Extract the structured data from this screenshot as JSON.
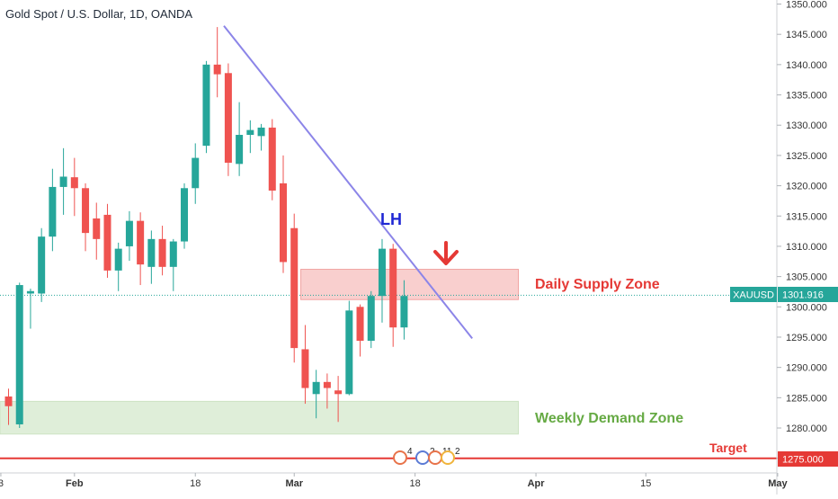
{
  "chart_data": {
    "type": "candlestick",
    "title": "Gold Spot / U.S. Dollar, 1D, OANDA",
    "symbol": "XAUUSD",
    "last_price": "1301.916",
    "ylim": [
      1272,
      1351
    ],
    "y_ticks": [
      "1275.000",
      "1280.000",
      "1285.000",
      "1290.000",
      "1295.000",
      "1300.000",
      "1305.000",
      "1310.000",
      "1315.000",
      "1320.000",
      "1325.000",
      "1330.000",
      "1335.000",
      "1340.000",
      "1345.000",
      "1350.000"
    ],
    "x_labels": [
      {
        "label": "3",
        "bar": -0.7
      },
      {
        "label": "Feb",
        "bar": 6
      },
      {
        "label": "18",
        "bar": 17
      },
      {
        "label": "Mar",
        "bar": 26
      },
      {
        "label": "18",
        "bar": 37
      },
      {
        "label": "Apr",
        "bar": 48
      },
      {
        "label": "15",
        "bar": 58
      },
      {
        "label": "May",
        "bar": 70
      }
    ],
    "candles": [
      {
        "o": 1285.2,
        "h": 1286.5,
        "l": 1280.5,
        "c": 1283.6
      },
      {
        "o": 1280.6,
        "h": 1304.0,
        "l": 1280.0,
        "c": 1303.6
      },
      {
        "o": 1302.2,
        "h": 1303.0,
        "l": 1296.4,
        "c": 1302.6
      },
      {
        "o": 1302.2,
        "h": 1313.0,
        "l": 1300.8,
        "c": 1311.6
      },
      {
        "o": 1311.6,
        "h": 1322.8,
        "l": 1309.2,
        "c": 1319.8
      },
      {
        "o": 1319.8,
        "h": 1326.2,
        "l": 1315.2,
        "c": 1321.5
      },
      {
        "o": 1321.4,
        "h": 1324.6,
        "l": 1315.0,
        "c": 1319.6
      },
      {
        "o": 1319.6,
        "h": 1320.4,
        "l": 1309.2,
        "c": 1312.2
      },
      {
        "o": 1314.6,
        "h": 1317.2,
        "l": 1307.8,
        "c": 1311.2
      },
      {
        "o": 1315.2,
        "h": 1317.0,
        "l": 1304.8,
        "c": 1306.0
      },
      {
        "o": 1306.0,
        "h": 1310.6,
        "l": 1302.6,
        "c": 1309.6
      },
      {
        "o": 1310.0,
        "h": 1315.8,
        "l": 1307.6,
        "c": 1314.2
      },
      {
        "o": 1314.2,
        "h": 1315.6,
        "l": 1303.6,
        "c": 1307.0
      },
      {
        "o": 1306.6,
        "h": 1312.6,
        "l": 1303.8,
        "c": 1311.2
      },
      {
        "o": 1311.2,
        "h": 1313.4,
        "l": 1305.2,
        "c": 1306.6
      },
      {
        "o": 1306.6,
        "h": 1311.2,
        "l": 1302.6,
        "c": 1310.8
      },
      {
        "o": 1310.8,
        "h": 1320.4,
        "l": 1309.6,
        "c": 1319.6
      },
      {
        "o": 1319.6,
        "h": 1327.0,
        "l": 1317.0,
        "c": 1324.6
      },
      {
        "o": 1326.6,
        "h": 1340.6,
        "l": 1325.4,
        "c": 1340.0
      },
      {
        "o": 1340.0,
        "h": 1346.2,
        "l": 1334.6,
        "c": 1338.4
      },
      {
        "o": 1338.6,
        "h": 1340.2,
        "l": 1321.6,
        "c": 1323.8
      },
      {
        "o": 1323.6,
        "h": 1333.8,
        "l": 1321.6,
        "c": 1328.4
      },
      {
        "o": 1328.4,
        "h": 1330.8,
        "l": 1325.4,
        "c": 1329.2
      },
      {
        "o": 1328.2,
        "h": 1330.2,
        "l": 1325.8,
        "c": 1329.6
      },
      {
        "o": 1329.6,
        "h": 1331.0,
        "l": 1317.6,
        "c": 1319.2
      },
      {
        "o": 1320.4,
        "h": 1325.0,
        "l": 1305.6,
        "c": 1307.4
      },
      {
        "o": 1313.0,
        "h": 1315.4,
        "l": 1290.8,
        "c": 1293.2
      },
      {
        "o": 1293.0,
        "h": 1297.0,
        "l": 1284.0,
        "c": 1286.6
      },
      {
        "o": 1285.6,
        "h": 1289.6,
        "l": 1281.6,
        "c": 1287.6
      },
      {
        "o": 1287.6,
        "h": 1289.0,
        "l": 1283.2,
        "c": 1286.6
      },
      {
        "o": 1286.2,
        "h": 1288.6,
        "l": 1281.0,
        "c": 1285.6
      },
      {
        "o": 1285.6,
        "h": 1301.0,
        "l": 1285.4,
        "c": 1299.4
      },
      {
        "o": 1300.0,
        "h": 1300.4,
        "l": 1291.8,
        "c": 1294.4
      },
      {
        "o": 1294.4,
        "h": 1302.6,
        "l": 1293.2,
        "c": 1301.8
      },
      {
        "o": 1301.8,
        "h": 1311.2,
        "l": 1297.4,
        "c": 1309.6
      },
      {
        "o": 1309.6,
        "h": 1310.4,
        "l": 1293.4,
        "c": 1296.6
      },
      {
        "o": 1296.6,
        "h": 1304.4,
        "l": 1294.6,
        "c": 1301.8
      }
    ],
    "trendline": {
      "from": {
        "bar": 19.6,
        "price": 1346.4
      },
      "to": {
        "bar": 42.2,
        "price": 1294.8
      }
    },
    "zones": [
      {
        "name": "Daily Supply Zone",
        "y_top": 1306.2,
        "y_bottom": 1301.2,
        "bar_start": 26.6,
        "bar_end": 46.4
      },
      {
        "name": "Weekly Demand Zone",
        "y_top": 1284.4,
        "y_bottom": 1279.0,
        "bar_start": 0,
        "bar_end": 46.4
      }
    ],
    "target_price": 1275,
    "annotations": {
      "lh": "LH",
      "supply_label": "Daily Supply Zone",
      "demand_label": "Weekly Demand Zone",
      "target_label": "Target",
      "target_price_label": "1275.000"
    },
    "event_badges": [
      "4",
      "2",
      "11",
      "2"
    ],
    "colors": {
      "bull": "#26a69a",
      "bear": "#ef5350",
      "trendline": "#8c85e8",
      "supply_fill": "#f8c7c6",
      "demand_fill": "#dcecd5",
      "supply_text": "#e53935",
      "demand_text": "#66aa44",
      "lh_text": "#1f27d4",
      "arrow": "#e53935",
      "target_line": "#e53935",
      "last_price": "#26a69a"
    }
  }
}
